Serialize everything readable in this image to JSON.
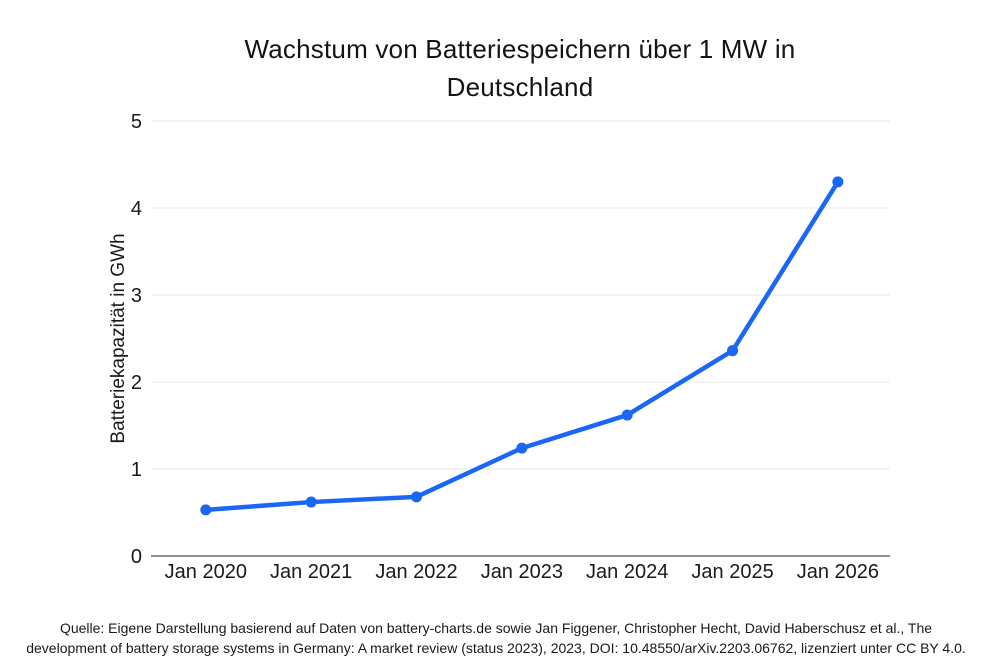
{
  "title": {
    "text": "Wachstum von Batteriespeichern über 1 MW in Deutschland",
    "lines": [
      "Wachstum von Batteriespeichern über 1 MW in",
      "Deutschland"
    ]
  },
  "footer": {
    "text": "Quelle: Eigene Darstellung basierend auf Daten von battery-charts.de sowie Jan Figgener, Christopher Hecht, David Haberschusz et al., The development of battery storage systems in Germany: A market review (status 2023), 2023, DOI: 10.48550/arXiv.2203.06762, lizenziert unter CC BY 4.0.",
    "lines": [
      "Quelle: Eigene Darstellung basierend auf Daten von battery-charts.de sowie Jan Figgener, Christopher Hecht, David Haberschusz et al., The",
      "development of battery storage systems in Germany: A market review (status 2023), 2023, DOI: 10.48550/arXiv.2203.06762, lizenziert unter CC BY 4.0."
    ]
  },
  "chart_data": {
    "type": "line",
    "title": "Wachstum von Batteriespeichern über 1 MW in Deutschland",
    "xlabel": "",
    "ylabel": "Batteriekapazität in GWh",
    "categories": [
      "Jan 2020",
      "Jan 2021",
      "Jan 2022",
      "Jan 2023",
      "Jan 2024",
      "Jan 2025",
      "Jan 2026"
    ],
    "values": [
      0.53,
      0.62,
      0.68,
      1.24,
      1.62,
      2.36,
      4.3
    ],
    "ylim": [
      0,
      5
    ],
    "yticks": [
      0,
      1,
      2,
      3,
      4,
      5
    ],
    "grid": true,
    "legend": "none",
    "line_color": "#1a66f5",
    "grid_color": "#e8e8e8",
    "axis_color": "#6f6f6f",
    "text_color": "#1a1a1a"
  }
}
